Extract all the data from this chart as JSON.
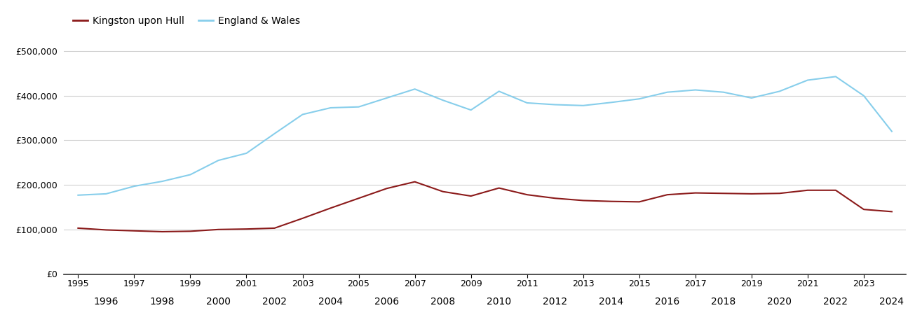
{
  "hull_years": [
    1995,
    1996,
    1997,
    1998,
    1999,
    2000,
    2001,
    2002,
    2003,
    2004,
    2005,
    2006,
    2007,
    2008,
    2009,
    2010,
    2011,
    2012,
    2013,
    2014,
    2015,
    2016,
    2017,
    2018,
    2019,
    2020,
    2021,
    2022,
    2023,
    2024
  ],
  "hull_values": [
    103000,
    99000,
    97000,
    95000,
    96000,
    100000,
    101000,
    103000,
    125000,
    148000,
    170000,
    192000,
    207000,
    185000,
    175000,
    193000,
    178000,
    170000,
    165000,
    163000,
    162000,
    178000,
    182000,
    181000,
    180000,
    181000,
    188000,
    188000,
    145000,
    140000
  ],
  "ew_years": [
    1995,
    1996,
    1997,
    1998,
    1999,
    2000,
    2001,
    2002,
    2003,
    2004,
    2005,
    2006,
    2007,
    2008,
    2009,
    2010,
    2011,
    2012,
    2013,
    2014,
    2015,
    2016,
    2017,
    2018,
    2019,
    2020,
    2021,
    2022,
    2023,
    2024
  ],
  "ew_values": [
    177000,
    180000,
    197000,
    208000,
    223000,
    255000,
    271000,
    315000,
    358000,
    373000,
    375000,
    395000,
    415000,
    390000,
    368000,
    410000,
    384000,
    380000,
    378000,
    385000,
    393000,
    408000,
    413000,
    408000,
    395000,
    410000,
    435000,
    443000,
    400000,
    320000
  ],
  "hull_color": "#8B1A1A",
  "ew_color": "#87CEEB",
  "hull_label": "Kingston upon Hull",
  "ew_label": "England & Wales",
  "yticks": [
    0,
    100000,
    200000,
    300000,
    400000,
    500000
  ],
  "ylim": [
    0,
    530000
  ],
  "xlim": [
    1994.5,
    2024.5
  ],
  "bg_color": "#ffffff",
  "grid_color": "#d0d0d0",
  "line_width": 1.5,
  "font_size_ticks": 9,
  "font_size_legend": 10
}
